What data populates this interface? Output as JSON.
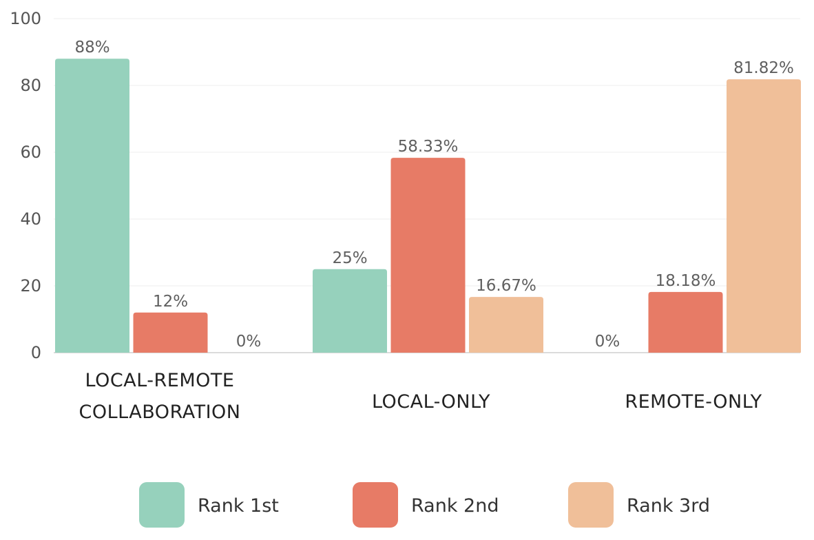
{
  "chart_data": {
    "type": "bar",
    "categories": [
      [
        "LOCAL-REMOTE",
        "COLLABORATION"
      ],
      [
        "LOCAL-ONLY"
      ],
      [
        "REMOTE-ONLY"
      ]
    ],
    "series": [
      {
        "name": "Rank 1st",
        "color": "#96d1bc",
        "values": [
          88,
          25,
          0
        ],
        "labels": [
          "88%",
          "25%",
          "0%"
        ]
      },
      {
        "name": "Rank 2nd",
        "color": "#e77b66",
        "values": [
          12,
          58.33,
          18.18
        ],
        "labels": [
          "12%",
          "58.33%",
          "18.18%"
        ]
      },
      {
        "name": "Rank 3rd",
        "color": "#f0bf99",
        "values": [
          0,
          16.67,
          81.82
        ],
        "labels": [
          "0%",
          "16.67%",
          "81.82%"
        ]
      }
    ],
    "yticks": [
      "0",
      "20",
      "40",
      "60",
      "80",
      "100"
    ],
    "ylim": [
      0,
      100
    ],
    "grid": true,
    "legend": "bottom"
  }
}
